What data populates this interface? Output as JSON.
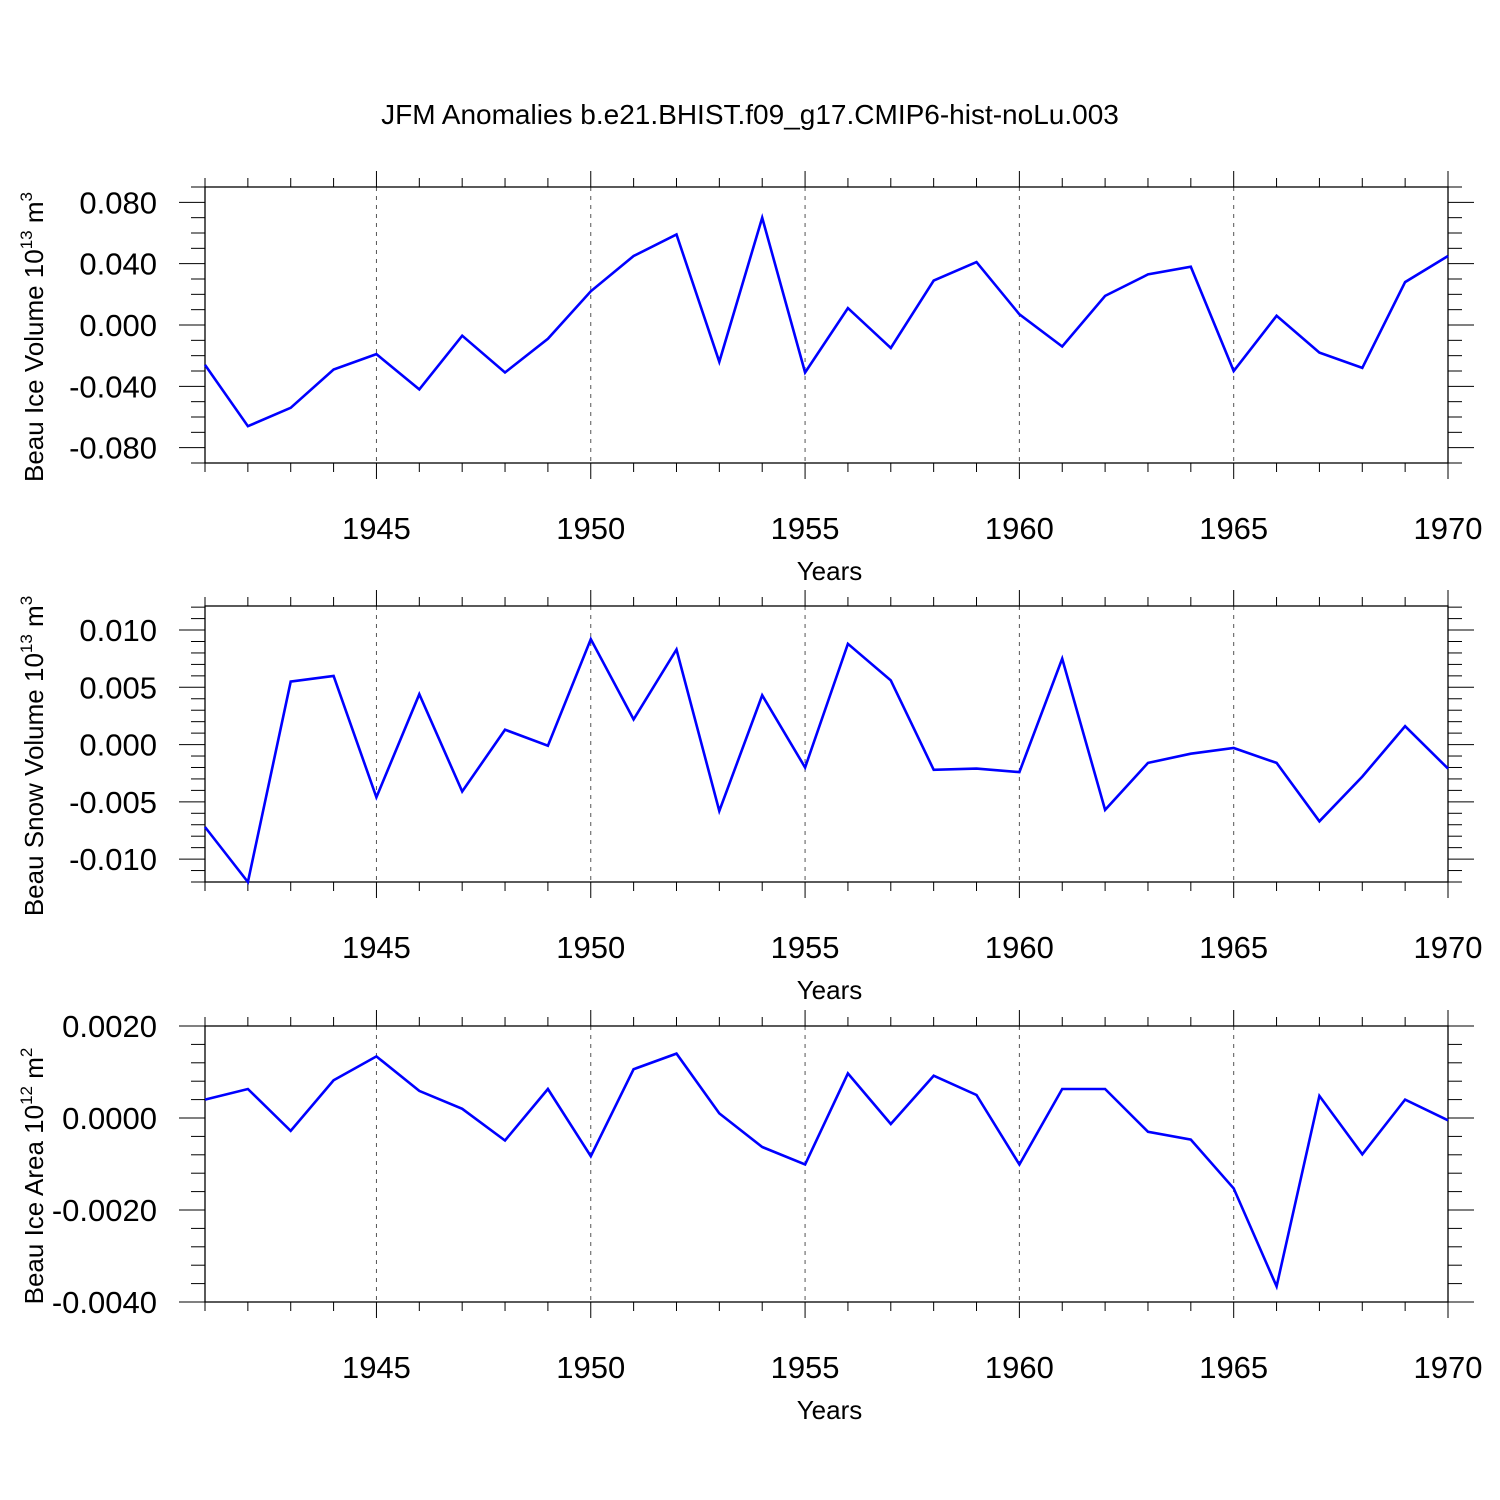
{
  "title": "JFM Anomalies b.e21.BHIST.f09_g17.CMIP6-hist-noLu.003",
  "colors": {
    "line": "#0000ff",
    "frame": "#000000",
    "grid": "#555555",
    "background": "#ffffff"
  },
  "chart_data": [
    {
      "type": "line",
      "title": "",
      "xlabel": "Years",
      "ylabel": "Beau Ice Volume 10",
      "ylabel_exp": "13",
      "ylabel_unit": " m",
      "ylabel_unit_exp": "3",
      "xlim": [
        1941,
        1970
      ],
      "ylim": [
        -0.09,
        0.09
      ],
      "x_ticks": [
        1945,
        1950,
        1955,
        1960,
        1965,
        1970
      ],
      "x_tick_labels": [
        "1945",
        "1950",
        "1955",
        "1960",
        "1965",
        "1970"
      ],
      "y_ticks": [
        -0.08,
        -0.04,
        0.0,
        0.04,
        0.08
      ],
      "y_tick_labels": [
        "-0.080",
        "-0.040",
        "0.000",
        "0.040",
        "0.080"
      ],
      "y_minor_step": 0.01,
      "grid": "dashed vertical at major x ticks",
      "series": [
        {
          "x": [
            1941,
            1942,
            1943,
            1944,
            1945,
            1946,
            1947,
            1948,
            1949,
            1950,
            1951,
            1952,
            1953,
            1954,
            1955,
            1956,
            1957,
            1958,
            1959,
            1960,
            1961,
            1962,
            1963,
            1964,
            1965,
            1966,
            1967,
            1968,
            1969,
            1970
          ],
          "values": [
            -0.026,
            -0.066,
            -0.054,
            -0.029,
            -0.019,
            -0.042,
            -0.007,
            -0.031,
            -0.009,
            0.022,
            0.045,
            0.059,
            -0.024,
            0.07,
            -0.031,
            0.011,
            -0.015,
            0.029,
            0.041,
            0.007,
            -0.014,
            0.019,
            0.033,
            0.038,
            -0.03,
            0.006,
            -0.018,
            -0.028,
            0.028,
            0.045
          ]
        }
      ]
    },
    {
      "type": "line",
      "title": "",
      "xlabel": "Years",
      "ylabel": "Beau Snow Volume 10",
      "ylabel_exp": "13",
      "ylabel_unit": " m",
      "ylabel_unit_exp": "3",
      "xlim": [
        1941,
        1970
      ],
      "ylim": [
        -0.012,
        0.0121
      ],
      "x_ticks": [
        1945,
        1950,
        1955,
        1960,
        1965,
        1970
      ],
      "x_tick_labels": [
        "1945",
        "1950",
        "1955",
        "1960",
        "1965",
        "1970"
      ],
      "y_ticks": [
        -0.01,
        -0.005,
        0.0,
        0.005,
        0.01
      ],
      "y_tick_labels": [
        "-0.010",
        "-0.005",
        "0.000",
        "0.005",
        "0.010"
      ],
      "y_minor_step": 0.001,
      "grid": "dashed vertical at major x ticks",
      "series": [
        {
          "x": [
            1941,
            1942,
            1943,
            1944,
            1945,
            1946,
            1947,
            1948,
            1949,
            1950,
            1951,
            1952,
            1953,
            1954,
            1955,
            1956,
            1957,
            1958,
            1959,
            1960,
            1961,
            1962,
            1963,
            1964,
            1965,
            1966,
            1967,
            1968,
            1969,
            1970
          ],
          "values": [
            -0.0072,
            -0.012,
            0.0055,
            0.006,
            -0.0046,
            0.0044,
            -0.0041,
            0.0013,
            -0.0001,
            0.0092,
            0.0022,
            0.0083,
            -0.0058,
            0.0043,
            -0.002,
            0.0088,
            0.0056,
            -0.0022,
            -0.0021,
            -0.0024,
            0.0075,
            -0.0057,
            -0.0016,
            -0.0008,
            -0.0003,
            -0.0016,
            -0.0067,
            -0.0028,
            0.0016,
            -0.0021
          ]
        }
      ]
    },
    {
      "type": "line",
      "title": "",
      "xlabel": "Years",
      "ylabel": "Beau Ice Area 10",
      "ylabel_exp": "12",
      "ylabel_unit": " m",
      "ylabel_unit_exp": "2",
      "xlim": [
        1941,
        1970
      ],
      "ylim": [
        -0.004,
        0.002
      ],
      "x_ticks": [
        1945,
        1950,
        1955,
        1960,
        1965,
        1970
      ],
      "x_tick_labels": [
        "1945",
        "1950",
        "1955",
        "1960",
        "1965",
        "1970"
      ],
      "y_ticks": [
        -0.004,
        -0.002,
        0.0,
        0.002
      ],
      "y_tick_labels": [
        "-0.0040",
        "-0.0020",
        "0.0000",
        "0.0020"
      ],
      "y_minor_step": 0.0004,
      "grid": "dashed vertical at major x ticks",
      "series": [
        {
          "x": [
            1941,
            1942,
            1943,
            1944,
            1945,
            1946,
            1947,
            1948,
            1949,
            1950,
            1951,
            1952,
            1953,
            1954,
            1955,
            1956,
            1957,
            1958,
            1959,
            1960,
            1961,
            1962,
            1963,
            1964,
            1965,
            1966,
            1967,
            1968,
            1969,
            1970
          ],
          "values": [
            0.0004,
            0.00063,
            -0.00028,
            0.00082,
            0.00134,
            0.00059,
            0.0002,
            -0.00049,
            0.00063,
            -0.00083,
            0.00106,
            0.0014,
            0.0001,
            -0.00063,
            -0.00101,
            0.00097,
            -0.00013,
            0.00092,
            0.0005,
            -0.00101,
            0.00063,
            0.00063,
            -0.0003,
            -0.00047,
            -0.00153,
            -0.00366,
            0.00048,
            -0.00079,
            0.0004,
            -5e-05
          ]
        }
      ]
    }
  ]
}
